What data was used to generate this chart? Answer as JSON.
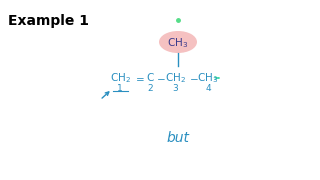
{
  "title": "Example 1",
  "title_color": "#000000",
  "title_fontsize": 10,
  "title_bold": true,
  "bg_color": "#ffffff",
  "chain_color": "#2a8fc0",
  "ch3_ellipse_color": "#f0a0a0",
  "ch3_ellipse_alpha": 0.65,
  "ch3_text_color": "#3a3a8c",
  "ch3_dot_color": "#55dd88",
  "teal_arrow_color": "#44ddaa",
  "but_color": "#2a8fc0",
  "but_text": "but",
  "num_color": "#2a8fc0",
  "arrow_color": "#2a8fc0",
  "figw": 3.2,
  "figh": 1.8,
  "dpi": 100
}
